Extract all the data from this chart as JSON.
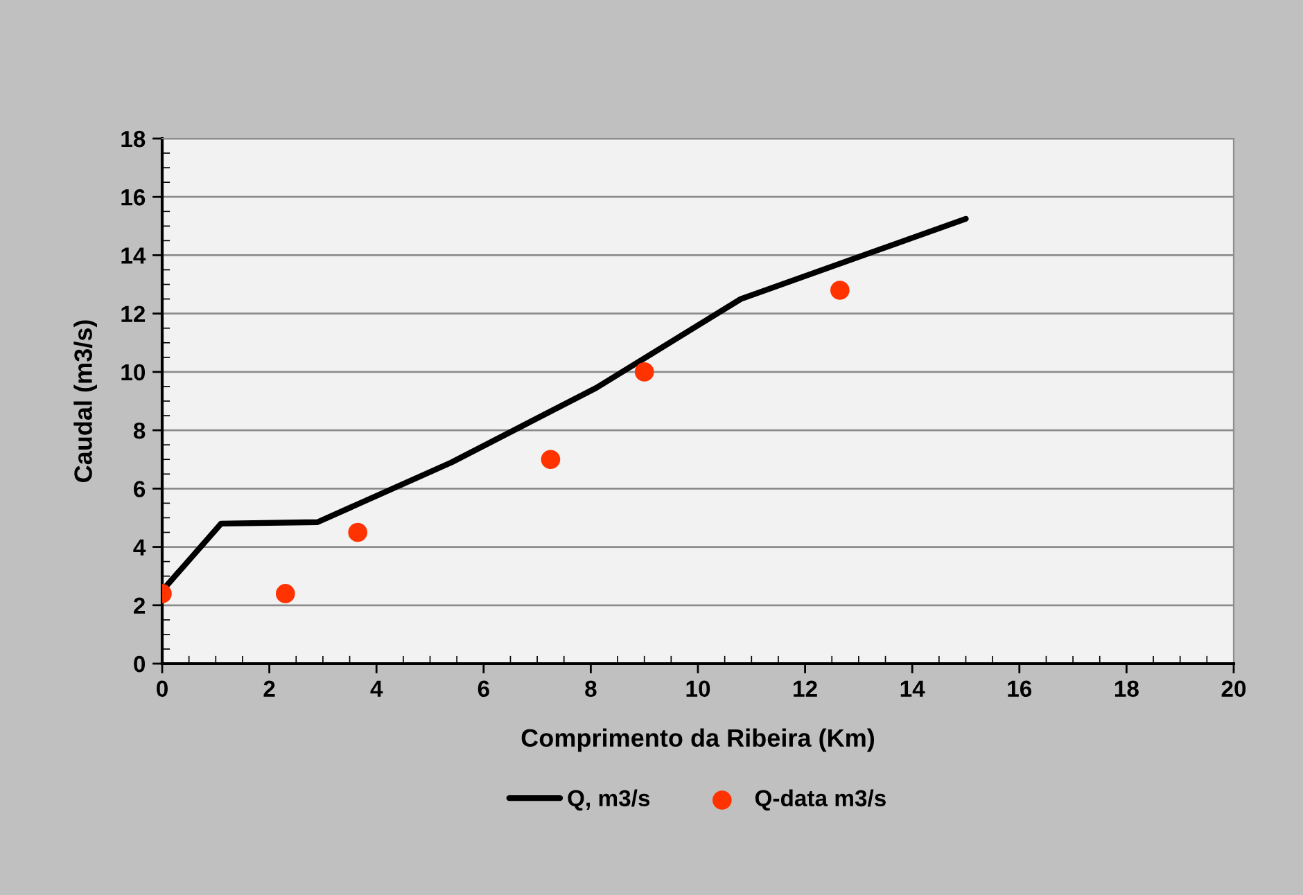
{
  "chart_data": {
    "type": "line",
    "xlabel": "Comprimento da Ribeira (Km)",
    "ylabel": "Caudal (m3/s)",
    "series": [
      {
        "name": "Q, m3/s",
        "color": "#000000",
        "x": [
          0,
          1.1,
          2.9,
          5.4,
          8.1,
          10.8,
          15.0
        ],
        "values": [
          2.5,
          4.8,
          4.85,
          6.9,
          9.45,
          12.5,
          15.25
        ]
      },
      {
        "name": "Q-data m3/s",
        "type": "scatter",
        "color": "#ff3300",
        "marker": "circle",
        "x": [
          0,
          2.3,
          3.65,
          7.25,
          9.0,
          12.65
        ],
        "values": [
          2.4,
          2.4,
          4.5,
          7.0,
          10.0,
          12.8
        ]
      }
    ],
    "xlim": [
      0,
      20
    ],
    "xticks": [
      0,
      2,
      4,
      6,
      8,
      10,
      12,
      14,
      16,
      18,
      20
    ],
    "ylim": [
      0,
      18
    ],
    "yticks": [
      0,
      2,
      4,
      6,
      8,
      10,
      12,
      14,
      16,
      18
    ],
    "grid": "y",
    "legend": "bottom"
  }
}
